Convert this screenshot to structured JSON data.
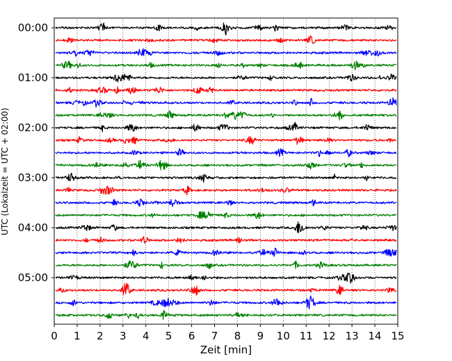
{
  "chart_data": {
    "type": "line",
    "title": "",
    "xlabel": "Zeit  [min]",
    "ylabel": "UTC (Lokalzeit = UTC + 02:00)",
    "xlim": [
      0,
      15
    ],
    "x_ticks": [
      "0",
      "1",
      "2",
      "3",
      "4",
      "5",
      "6",
      "7",
      "8",
      "9",
      "10",
      "11",
      "12",
      "13",
      "14",
      "15"
    ],
    "y_tick_labels": [
      "00:00",
      "01:00",
      "02:00",
      "03:00",
      "04:00",
      "05:00"
    ],
    "grid": "vertical dotted at each minute",
    "trace_interval_minutes": 15,
    "trace_count": 24,
    "colors": [
      "#000000",
      "#ff0000",
      "#0000ff",
      "#008000"
    ],
    "series": [
      {
        "start": "00:00",
        "color": "#000000"
      },
      {
        "start": "00:15",
        "color": "#ff0000"
      },
      {
        "start": "00:30",
        "color": "#0000ff"
      },
      {
        "start": "00:45",
        "color": "#008000"
      },
      {
        "start": "01:00",
        "color": "#000000"
      },
      {
        "start": "01:15",
        "color": "#ff0000"
      },
      {
        "start": "01:30",
        "color": "#0000ff"
      },
      {
        "start": "01:45",
        "color": "#008000"
      },
      {
        "start": "02:00",
        "color": "#000000"
      },
      {
        "start": "02:15",
        "color": "#ff0000"
      },
      {
        "start": "02:30",
        "color": "#0000ff"
      },
      {
        "start": "02:45",
        "color": "#008000"
      },
      {
        "start": "03:00",
        "color": "#000000"
      },
      {
        "start": "03:15",
        "color": "#ff0000"
      },
      {
        "start": "03:30",
        "color": "#0000ff"
      },
      {
        "start": "03:45",
        "color": "#008000"
      },
      {
        "start": "04:00",
        "color": "#000000"
      },
      {
        "start": "04:15",
        "color": "#ff0000"
      },
      {
        "start": "04:30",
        "color": "#0000ff"
      },
      {
        "start": "04:45",
        "color": "#008000"
      },
      {
        "start": "05:00",
        "color": "#000000"
      },
      {
        "start": "05:15",
        "color": "#ff0000"
      },
      {
        "start": "05:30",
        "color": "#0000ff"
      },
      {
        "start": "05:45",
        "color": "#008000"
      }
    ]
  }
}
